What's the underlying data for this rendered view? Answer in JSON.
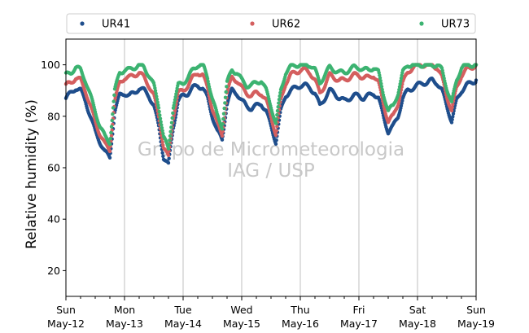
{
  "chart_data": {
    "type": "scatter",
    "ylabel": "Relative humidity (%)",
    "xlabel": "",
    "title": "",
    "ylim": [
      10,
      110
    ],
    "yticks": [
      20,
      40,
      60,
      80,
      100
    ],
    "xlim_days": [
      0,
      7
    ],
    "xticks": [
      {
        "day": "Sun",
        "date": "May-12"
      },
      {
        "day": "Mon",
        "date": "May-13"
      },
      {
        "day": "Tue",
        "date": "May-14"
      },
      {
        "day": "Wed",
        "date": "May-15"
      },
      {
        "day": "Thu",
        "date": "May-16"
      },
      {
        "day": "Fri",
        "date": "May-17"
      },
      {
        "day": "Sat",
        "date": "May-18"
      },
      {
        "day": "Sun",
        "date": "May-19"
      }
    ],
    "grid": "vertical",
    "legend_position": "top",
    "watermark": [
      "Grupo de Micrometeorologia",
      "IAG / USP"
    ],
    "series": [
      {
        "name": "UR41",
        "color": "#1f4e8c",
        "points": [
          [
            "05-12 00:00",
            87
          ],
          [
            "05-12 02:00",
            89
          ],
          [
            "05-12 04:00",
            91
          ],
          [
            "05-12 06:00",
            90
          ],
          [
            "05-12 08:00",
            86
          ],
          [
            "05-12 10:00",
            80
          ],
          [
            "05-12 12:00",
            74
          ],
          [
            "05-12 14:00",
            70
          ],
          [
            "05-12 16:00",
            66
          ],
          [
            "05-12 18:00",
            64
          ],
          [
            "05-12 20:00",
            82
          ],
          [
            "05-12 22:00",
            88
          ],
          [
            "05-13 00:00",
            89
          ],
          [
            "05-13 02:00",
            88
          ],
          [
            "05-13 04:00",
            89
          ],
          [
            "05-13 06:00",
            91
          ],
          [
            "05-13 08:00",
            90
          ],
          [
            "05-13 10:00",
            88
          ],
          [
            "05-13 12:00",
            84
          ],
          [
            "05-13 14:00",
            76
          ],
          [
            "05-13 16:00",
            64
          ],
          [
            "05-13 18:00",
            61
          ],
          [
            "05-13 20:00",
            76
          ],
          [
            "05-13 22:00",
            86
          ],
          [
            "05-14 00:00",
            88
          ],
          [
            "05-14 02:00",
            89
          ],
          [
            "05-14 04:00",
            91
          ],
          [
            "05-14 06:00",
            92
          ],
          [
            "05-14 08:00",
            91
          ],
          [
            "05-14 10:00",
            87
          ],
          [
            "05-14 12:00",
            80
          ],
          [
            "05-14 14:00",
            74
          ],
          [
            "05-14 16:00",
            71
          ],
          [
            "05-14 18:00",
            85
          ],
          [
            "05-14 20:00",
            90
          ],
          [
            "05-14 22:00",
            89
          ],
          [
            "05-15 00:00",
            86
          ],
          [
            "05-15 02:00",
            84
          ],
          [
            "05-15 04:00",
            83
          ],
          [
            "05-15 06:00",
            84
          ],
          [
            "05-15 08:00",
            85
          ],
          [
            "05-15 10:00",
            82
          ],
          [
            "05-15 12:00",
            76
          ],
          [
            "05-15 14:00",
            70
          ],
          [
            "05-15 16:00",
            82
          ],
          [
            "05-15 18:00",
            88
          ],
          [
            "05-15 20:00",
            90
          ],
          [
            "05-15 22:00",
            91
          ],
          [
            "05-16 00:00",
            92
          ],
          [
            "05-16 02:00",
            92
          ],
          [
            "05-16 04:00",
            91
          ],
          [
            "05-16 06:00",
            89
          ],
          [
            "05-16 08:00",
            84
          ],
          [
            "05-16 10:00",
            87
          ],
          [
            "05-16 12:00",
            90
          ],
          [
            "05-16 14:00",
            89
          ],
          [
            "05-16 16:00",
            87
          ],
          [
            "05-16 18:00",
            86
          ],
          [
            "05-16 20:00",
            87
          ],
          [
            "05-16 22:00",
            88
          ],
          [
            "05-17 00:00",
            88
          ],
          [
            "05-17 02:00",
            87
          ],
          [
            "05-17 04:00",
            88
          ],
          [
            "05-17 06:00",
            89
          ],
          [
            "05-17 08:00",
            87
          ],
          [
            "05-17 10:00",
            80
          ],
          [
            "05-17 12:00",
            74
          ],
          [
            "05-17 14:00",
            76
          ],
          [
            "05-17 16:00",
            80
          ],
          [
            "05-17 18:00",
            87
          ],
          [
            "05-17 20:00",
            90
          ],
          [
            "05-17 22:00",
            91
          ],
          [
            "05-18 00:00",
            92
          ],
          [
            "05-18 02:00",
            93
          ],
          [
            "05-18 04:00",
            93
          ],
          [
            "05-18 06:00",
            94
          ],
          [
            "05-18 08:00",
            93
          ],
          [
            "05-18 10:00",
            90
          ],
          [
            "05-18 12:00",
            84
          ],
          [
            "05-18 14:00",
            78
          ],
          [
            "05-18 16:00",
            86
          ],
          [
            "05-18 18:00",
            90
          ],
          [
            "05-18 20:00",
            92
          ],
          [
            "05-18 22:00",
            93
          ],
          [
            "05-19 00:00",
            94
          ]
        ]
      },
      {
        "name": "UR62",
        "color": "#d45f5f",
        "points": [
          [
            "05-12 00:00",
            92
          ],
          [
            "05-12 02:00",
            93
          ],
          [
            "05-12 04:00",
            95
          ],
          [
            "05-12 06:00",
            94
          ],
          [
            "05-12 08:00",
            90
          ],
          [
            "05-12 10:00",
            84
          ],
          [
            "05-12 12:00",
            78
          ],
          [
            "05-12 14:00",
            73
          ],
          [
            "05-12 16:00",
            69
          ],
          [
            "05-12 18:00",
            67
          ],
          [
            "05-12 20:00",
            86
          ],
          [
            "05-12 22:00",
            93
          ],
          [
            "05-13 00:00",
            95
          ],
          [
            "05-13 02:00",
            95
          ],
          [
            "05-13 04:00",
            96
          ],
          [
            "05-13 06:00",
            97
          ],
          [
            "05-13 08:00",
            95
          ],
          [
            "05-13 10:00",
            92
          ],
          [
            "05-13 12:00",
            88
          ],
          [
            "05-13 14:00",
            80
          ],
          [
            "05-13 16:00",
            68
          ],
          [
            "05-13 18:00",
            64
          ],
          [
            "05-13 20:00",
            80
          ],
          [
            "05-13 22:00",
            89
          ],
          [
            "05-14 00:00",
            90
          ],
          [
            "05-14 02:00",
            92
          ],
          [
            "05-14 04:00",
            95
          ],
          [
            "05-14 06:00",
            97
          ],
          [
            "05-14 08:00",
            96
          ],
          [
            "05-14 10:00",
            91
          ],
          [
            "05-14 12:00",
            83
          ],
          [
            "05-14 14:00",
            77
          ],
          [
            "05-14 16:00",
            73
          ],
          [
            "05-14 18:00",
            89
          ],
          [
            "05-14 20:00",
            95
          ],
          [
            "05-14 22:00",
            94
          ],
          [
            "05-15 00:00",
            91
          ],
          [
            "05-15 02:00",
            89
          ],
          [
            "05-15 04:00",
            88
          ],
          [
            "05-15 06:00",
            89
          ],
          [
            "05-15 08:00",
            89
          ],
          [
            "05-15 10:00",
            86
          ],
          [
            "05-15 12:00",
            80
          ],
          [
            "05-15 14:00",
            73
          ],
          [
            "05-15 16:00",
            86
          ],
          [
            "05-15 18:00",
            93
          ],
          [
            "05-15 20:00",
            96
          ],
          [
            "05-15 22:00",
            97
          ],
          [
            "05-16 00:00",
            98
          ],
          [
            "05-16 02:00",
            98
          ],
          [
            "05-16 04:00",
            97
          ],
          [
            "05-16 06:00",
            94
          ],
          [
            "05-16 08:00",
            89
          ],
          [
            "05-16 10:00",
            92
          ],
          [
            "05-16 12:00",
            96
          ],
          [
            "05-16 14:00",
            95
          ],
          [
            "05-16 16:00",
            94
          ],
          [
            "05-16 18:00",
            94
          ],
          [
            "05-16 20:00",
            95
          ],
          [
            "05-16 22:00",
            96
          ],
          [
            "05-17 00:00",
            96
          ],
          [
            "05-17 02:00",
            95
          ],
          [
            "05-17 04:00",
            95
          ],
          [
            "05-17 06:00",
            96
          ],
          [
            "05-17 08:00",
            93
          ],
          [
            "05-17 10:00",
            85
          ],
          [
            "05-17 12:00",
            78
          ],
          [
            "05-17 14:00",
            80
          ],
          [
            "05-17 16:00",
            85
          ],
          [
            "05-17 18:00",
            93
          ],
          [
            "05-17 20:00",
            97
          ],
          [
            "05-17 22:00",
            99
          ],
          [
            "05-18 00:00",
            100
          ],
          [
            "05-18 02:00",
            100
          ],
          [
            "05-18 04:00",
            100
          ],
          [
            "05-18 06:00",
            100
          ],
          [
            "05-18 08:00",
            99
          ],
          [
            "05-18 10:00",
            95
          ],
          [
            "05-18 12:00",
            88
          ],
          [
            "05-18 14:00",
            82
          ],
          [
            "05-18 16:00",
            91
          ],
          [
            "05-18 18:00",
            96
          ],
          [
            "05-18 20:00",
            98
          ],
          [
            "05-18 22:00",
            99
          ],
          [
            "05-19 00:00",
            100
          ]
        ]
      },
      {
        "name": "UR73",
        "color": "#3cb371",
        "points": [
          [
            "05-12 00:00",
            96
          ],
          [
            "05-12 02:00",
            97
          ],
          [
            "05-12 04:00",
            99
          ],
          [
            "05-12 06:00",
            98
          ],
          [
            "05-12 08:00",
            94
          ],
          [
            "05-12 10:00",
            88
          ],
          [
            "05-12 12:00",
            82
          ],
          [
            "05-12 14:00",
            76
          ],
          [
            "05-12 16:00",
            72
          ],
          [
            "05-12 18:00",
            70
          ],
          [
            "05-12 20:00",
            90
          ],
          [
            "05-12 22:00",
            97
          ],
          [
            "05-13 00:00",
            98
          ],
          [
            "05-13 02:00",
            98
          ],
          [
            "05-13 04:00",
            99
          ],
          [
            "05-13 06:00",
            100
          ],
          [
            "05-13 08:00",
            99
          ],
          [
            "05-13 10:00",
            96
          ],
          [
            "05-13 12:00",
            92
          ],
          [
            "05-13 14:00",
            84
          ],
          [
            "05-13 16:00",
            72
          ],
          [
            "05-13 18:00",
            67
          ],
          [
            "05-13 20:00",
            84
          ],
          [
            "05-13 22:00",
            92
          ],
          [
            "05-14 00:00",
            93
          ],
          [
            "05-14 02:00",
            95
          ],
          [
            "05-14 04:00",
            98
          ],
          [
            "05-14 06:00",
            100
          ],
          [
            "05-14 08:00",
            100
          ],
          [
            "05-14 10:00",
            95
          ],
          [
            "05-14 12:00",
            87
          ],
          [
            "05-14 14:00",
            80
          ],
          [
            "05-14 16:00",
            76
          ],
          [
            "05-14 18:00",
            93
          ],
          [
            "05-14 20:00",
            98
          ],
          [
            "05-14 22:00",
            97
          ],
          [
            "05-15 00:00",
            94
          ],
          [
            "05-15 02:00",
            92
          ],
          [
            "05-15 04:00",
            92
          ],
          [
            "05-15 06:00",
            93
          ],
          [
            "05-15 08:00",
            94
          ],
          [
            "05-15 10:00",
            90
          ],
          [
            "05-15 12:00",
            84
          ],
          [
            "05-15 14:00",
            77
          ],
          [
            "05-15 16:00",
            90
          ],
          [
            "05-15 18:00",
            97
          ],
          [
            "05-15 20:00",
            99
          ],
          [
            "05-15 22:00",
            100
          ],
          [
            "05-16 00:00",
            100
          ],
          [
            "05-16 02:00",
            100
          ],
          [
            "05-16 04:00",
            100
          ],
          [
            "05-16 06:00",
            98
          ],
          [
            "05-16 08:00",
            93
          ],
          [
            "05-16 10:00",
            96
          ],
          [
            "05-16 12:00",
            99
          ],
          [
            "05-16 14:00",
            98
          ],
          [
            "05-16 16:00",
            97
          ],
          [
            "05-16 18:00",
            97
          ],
          [
            "05-16 20:00",
            98
          ],
          [
            "05-16 22:00",
            99
          ],
          [
            "05-17 00:00",
            99
          ],
          [
            "05-17 02:00",
            98
          ],
          [
            "05-17 04:00",
            98
          ],
          [
            "05-17 06:00",
            99
          ],
          [
            "05-17 08:00",
            97
          ],
          [
            "05-17 10:00",
            89
          ],
          [
            "05-17 12:00",
            82
          ],
          [
            "05-17 14:00",
            84
          ],
          [
            "05-17 16:00",
            89
          ],
          [
            "05-17 18:00",
            97
          ],
          [
            "05-17 20:00",
            100
          ],
          [
            "05-17 22:00",
            100
          ],
          [
            "05-18 00:00",
            100
          ],
          [
            "05-18 02:00",
            100
          ],
          [
            "05-18 04:00",
            100
          ],
          [
            "05-18 06:00",
            100
          ],
          [
            "05-18 08:00",
            100
          ],
          [
            "05-18 10:00",
            98
          ],
          [
            "05-18 12:00",
            91
          ],
          [
            "05-18 14:00",
            85
          ],
          [
            "05-18 16:00",
            94
          ],
          [
            "05-18 18:00",
            99
          ],
          [
            "05-18 20:00",
            100
          ],
          [
            "05-18 22:00",
            100
          ],
          [
            "05-19 00:00",
            100
          ]
        ]
      }
    ]
  }
}
